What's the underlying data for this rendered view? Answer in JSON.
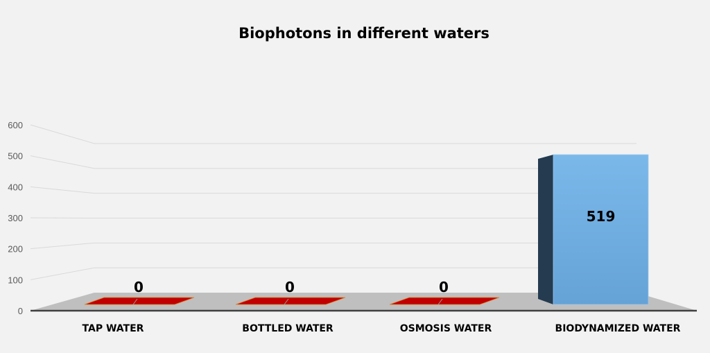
{
  "chart_data": {
    "type": "bar",
    "title": "Biophotons in different waters",
    "categories": [
      "TAP WATER",
      "BOTTLED WATER",
      "OSMOSIS WATER",
      "BIODYNAMIZED WATER"
    ],
    "values": [
      0,
      0,
      0,
      519
    ],
    "data_labels": [
      "0",
      "0",
      "0",
      "519"
    ],
    "xlabel": "",
    "ylabel": "",
    "ylim": [
      0,
      600
    ],
    "yticks": [
      "0",
      "100",
      "200",
      "300",
      "400",
      "500",
      "600"
    ],
    "grid": true,
    "legend": "none",
    "colors": {
      "zero_bar": "#c00000",
      "bar": "#6fa8dc",
      "bar_side": "#243b50",
      "floor": "#bfbfbf"
    }
  }
}
